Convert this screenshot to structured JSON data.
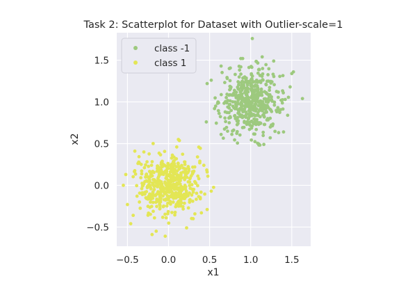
{
  "chart_data": {
    "type": "scatter",
    "title": "Task 2: Scatterplot for Dataset with Outlier-scale=1",
    "xlabel": "x1",
    "ylabel": "x2",
    "xlim": [
      -0.63,
      1.73
    ],
    "ylim": [
      -0.73,
      1.83
    ],
    "xticks": [
      -0.5,
      0.0,
      0.5,
      1.0,
      1.5
    ],
    "yticks": [
      -0.5,
      0.0,
      0.5,
      1.0,
      1.5
    ],
    "xtick_labels": [
      "−0.5",
      "0.0",
      "0.5",
      "1.0",
      "1.5"
    ],
    "ytick_labels": [
      "−0.5",
      "0.0",
      "0.5",
      "1.0",
      "1.5"
    ],
    "grid": true,
    "legend_position": "top-left",
    "series": [
      {
        "name": "class -1",
        "color": "#9dc97e",
        "distribution": {
          "center": [
            1.0,
            1.0
          ],
          "spread": [
            0.18,
            0.19
          ],
          "count": 500
        },
        "points": [
          [
            1.02,
            1.76
          ],
          [
            0.46,
            0.76
          ],
          [
            1.63,
            1.04
          ],
          [
            1.5,
            1.34
          ],
          [
            1.52,
            1.36
          ],
          [
            0.88,
            1.52
          ],
          [
            1.14,
            1.54
          ],
          [
            0.74,
            1.4
          ],
          [
            0.47,
            1.22
          ],
          [
            0.52,
            1.26
          ],
          [
            1.28,
            1.49
          ],
          [
            0.64,
            0.61
          ],
          [
            1.1,
            0.49
          ],
          [
            1.16,
            0.49
          ],
          [
            1.45,
            0.84
          ],
          [
            1.4,
            0.64
          ],
          [
            0.64,
            1.43
          ],
          [
            1.37,
            1.02
          ],
          [
            1.48,
            1.18
          ],
          [
            0.56,
            0.92
          ]
        ]
      },
      {
        "name": "class 1",
        "color": "#e3e655",
        "distribution": {
          "center": [
            0.0,
            0.0
          ],
          "spread": [
            0.18,
            0.18
          ],
          "count": 500
        },
        "points": [
          [
            0.12,
            0.55
          ],
          [
            -0.41,
            0.41
          ],
          [
            -0.52,
            0.13
          ],
          [
            -0.5,
            -0.23
          ],
          [
            -0.2,
            -0.59
          ],
          [
            -0.04,
            -0.61
          ],
          [
            0.22,
            -0.51
          ],
          [
            0.4,
            -0.33
          ],
          [
            0.47,
            0.16
          ],
          [
            0.52,
            -0.07
          ],
          [
            0.47,
            -0.29
          ],
          [
            -0.43,
            -0.36
          ],
          [
            0.1,
            0.46
          ],
          [
            -0.3,
            0.4
          ],
          [
            -0.46,
            -0.46
          ],
          [
            0.38,
            0.27
          ],
          [
            0.3,
            -0.4
          ],
          [
            -0.55,
            0.0
          ],
          [
            -0.15,
            -0.55
          ],
          [
            0.43,
            0.24
          ]
        ]
      }
    ]
  }
}
